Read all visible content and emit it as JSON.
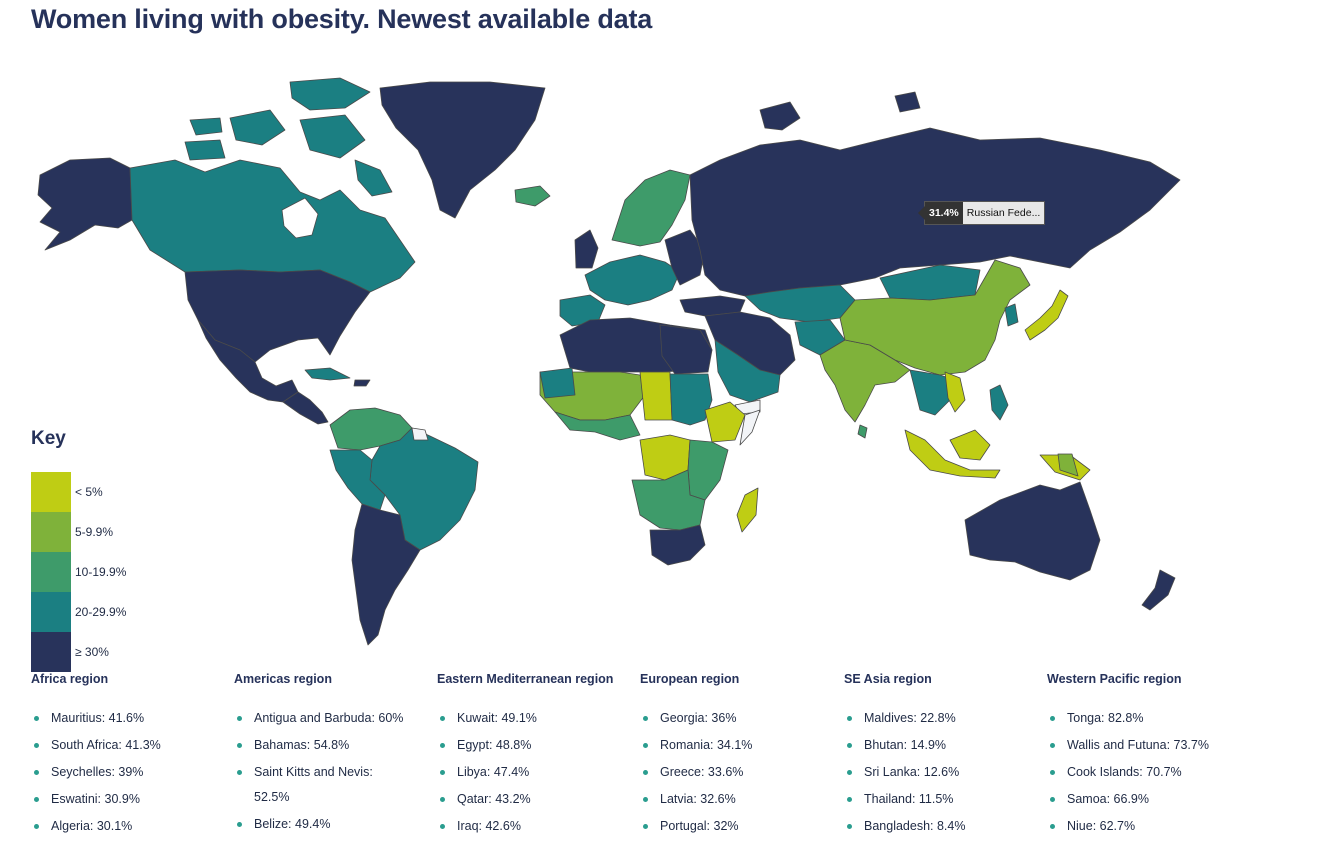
{
  "title": "Women living with obesity. Newest available data",
  "colors": {
    "lt5": "#bfcd14",
    "c5_9": "#7fb23a",
    "c10_19": "#3e9b6a",
    "c20_29": "#1b7f82",
    "ge30": "#28335b",
    "nodata": "#f2f4f7",
    "border": "#4a4a4a"
  },
  "key": {
    "title": "Key",
    "items": [
      {
        "label": "< 5%",
        "color": "#bfcd14"
      },
      {
        "label": "5-9.9%",
        "color": "#7fb23a"
      },
      {
        "label": "10-19.9%",
        "color": "#3e9b6a"
      },
      {
        "label": "20-29.9%",
        "color": "#1b7f82"
      },
      {
        "label": "≥ 30%",
        "color": "#28335b"
      }
    ]
  },
  "tooltip": {
    "value": "31.4%",
    "name": "Russian Fede..."
  },
  "regions": [
    {
      "title": "Africa region",
      "items": [
        "Mauritius: 41.6%",
        "South Africa: 41.3%",
        "Seychelles: 39%",
        "Eswatini: 30.9%",
        "Algeria: 30.1%"
      ]
    },
    {
      "title": "Americas region",
      "items": [
        "Antigua and Barbuda: 60%",
        "Bahamas: 54.8%",
        "Saint Kitts and Nevis: 52.5%",
        "Belize: 49.4%"
      ]
    },
    {
      "title": "Eastern Mediterranean region",
      "items": [
        "Kuwait: 49.1%",
        "Egypt: 48.8%",
        "Libya: 47.4%",
        "Qatar: 43.2%",
        "Iraq: 42.6%"
      ]
    },
    {
      "title": "European region",
      "items": [
        "Georgia: 36%",
        "Romania: 34.1%",
        "Greece: 33.6%",
        "Latvia: 32.6%",
        "Portugal: 32%"
      ]
    },
    {
      "title": "SE Asia region",
      "items": [
        "Maldives: 22.8%",
        "Bhutan: 14.9%",
        "Sri Lanka: 12.6%",
        "Thailand: 11.5%",
        "Bangladesh: 8.4%"
      ]
    },
    {
      "title": "Western Pacific region",
      "items": [
        "Tonga: 82.8%",
        "Wallis and Futuna: 73.7%",
        "Cook Islands: 70.7%",
        "Samoa: 66.9%",
        "Niue: 62.7%"
      ]
    }
  ]
}
